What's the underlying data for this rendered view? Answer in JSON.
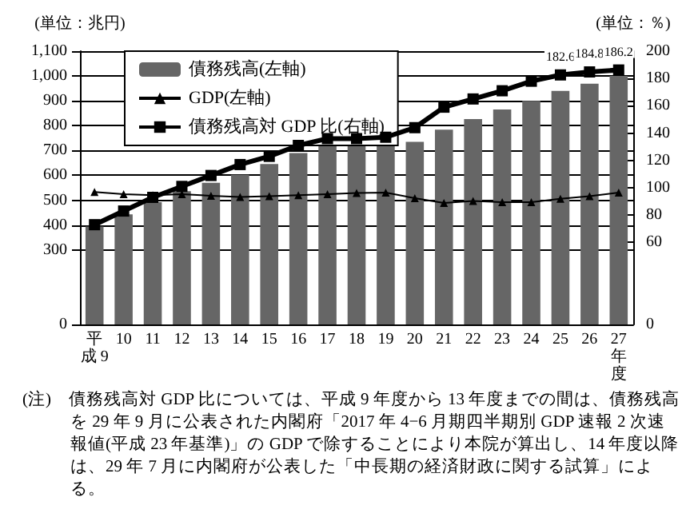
{
  "chart_data": {
    "type": "bar",
    "categories": [
      "平成 9",
      "10",
      "11",
      "12",
      "13",
      "14",
      "15",
      "16",
      "17",
      "18",
      "19",
      "20",
      "21",
      "22",
      "23",
      "24",
      "25",
      "26",
      "27年度"
    ],
    "series": [
      {
        "name": "債務残高(左軸)",
        "color": "#666666",
        "values": [
          394,
          443,
          492,
          536,
          570,
          602,
          646,
          690,
          722,
          726,
          730,
          735,
          784,
          827,
          865,
          900,
          940,
          969,
          1000
        ]
      },
      {
        "name": "GDP(左軸)",
        "type": "line",
        "color": "#000000",
        "marker": "triangle",
        "values": [
          533,
          524,
          520,
          524,
          518,
          513,
          516,
          520,
          524,
          529,
          531,
          508,
          489,
          497,
          492,
          492,
          506,
          516,
          531
        ]
      },
      {
        "name": "債務残高対 GDP 比(右軸)",
        "type": "line",
        "axis": "y2",
        "color": "#000000",
        "marker": "square",
        "values": [
          73,
          83,
          93,
          101,
          109,
          117,
          123,
          131,
          136,
          136,
          137,
          144,
          159,
          165,
          171,
          178,
          182.6,
          184.8,
          186.2
        ],
        "value_labels": [
          null,
          null,
          null,
          null,
          null,
          null,
          null,
          null,
          null,
          null,
          null,
          null,
          null,
          null,
          null,
          null,
          "182.6",
          "184.8",
          "186.2"
        ]
      }
    ],
    "ylabel": "(単位：兆円)",
    "y2label": "(単位：％)",
    "ylim": [
      0,
      1100
    ],
    "yticks": [
      0,
      300,
      400,
      500,
      600,
      700,
      800,
      900,
      {
        "value": 1000,
        "label": "1,000"
      },
      {
        "value": 1100,
        "label": "1,100"
      }
    ],
    "y2lim": [
      0,
      200
    ],
    "y2ticks": [
      0,
      60,
      80,
      100,
      120,
      140,
      160,
      180,
      200
    ],
    "grid": "y",
    "legend": "top left",
    "annotations": [
      "(注)　債務残高対 GDP 比については、平成 9 年度から 13 年度までの間は、債務残高を 29 年 9 月に公表された内閣府「2017 年 4−6 月期四半期別 GDP 速報 2 次速報値(平成 23 年基準)」の GDP で除することにより本院が算出し、14 年度以降は、29 年 7 月に内閣府が公表した「中長期の経済財政に関する試算」による。"
    ]
  }
}
